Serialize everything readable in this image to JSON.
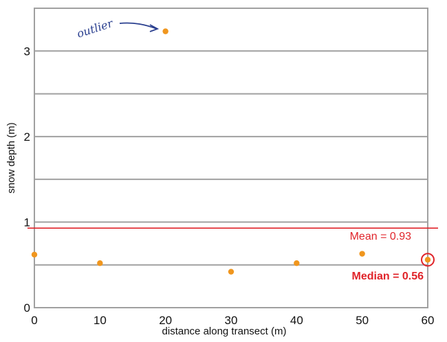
{
  "chart_data": {
    "type": "scatter",
    "title": "",
    "xlabel": "distance along transect (m)",
    "ylabel": "snow depth (m)",
    "xlim": [
      0,
      60
    ],
    "ylim": [
      0,
      3.5
    ],
    "xticks": [
      0,
      10,
      20,
      30,
      40,
      50,
      60
    ],
    "yticks": [
      0,
      1,
      2,
      3
    ],
    "grid": true,
    "gridlines_y": [
      0.5,
      1,
      1.5,
      2,
      2.5,
      3
    ],
    "points": [
      {
        "x": 0,
        "y": 0.62
      },
      {
        "x": 10,
        "y": 0.52
      },
      {
        "x": 20,
        "y": 3.23
      },
      {
        "x": 30,
        "y": 0.42
      },
      {
        "x": 40,
        "y": 0.52
      },
      {
        "x": 50,
        "y": 0.63
      },
      {
        "x": 60,
        "y": 0.56
      }
    ],
    "mean": {
      "value": 0.93,
      "label": "Mean = 0.93"
    },
    "median": {
      "value": 0.56,
      "x": 60,
      "label": "Median = 0.56"
    },
    "annotations": [
      {
        "text": "outlier",
        "target_x": 20,
        "target_y": 3.23
      }
    ],
    "colors": {
      "point": "#f0961e",
      "stats": "#e0242a",
      "annotation": "#2a3f8f",
      "grid": "#a0a0a0"
    }
  }
}
